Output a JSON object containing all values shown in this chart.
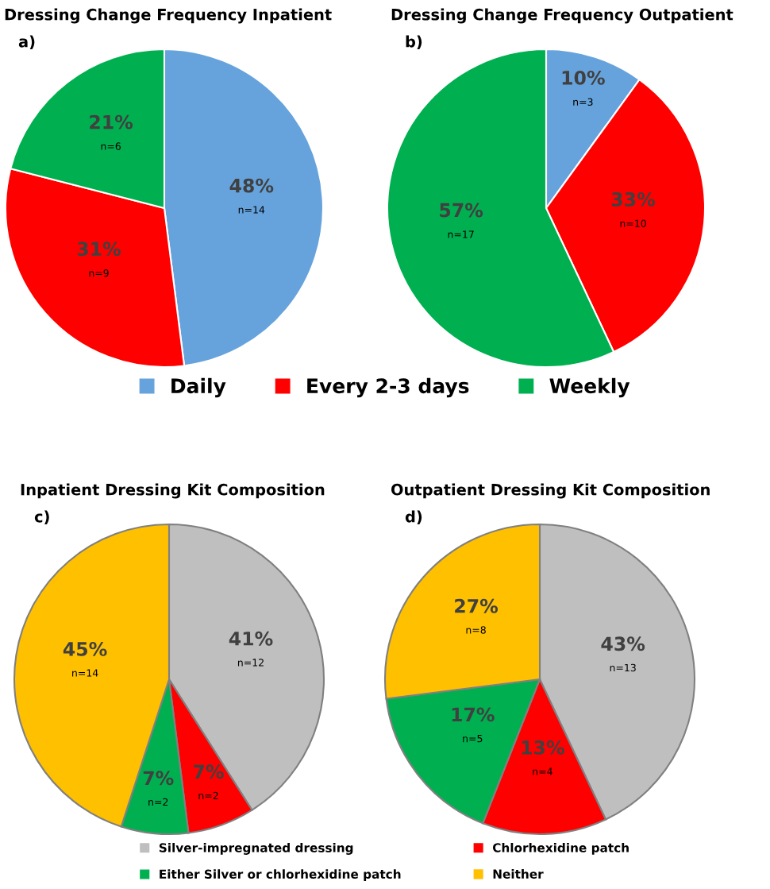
{
  "chart_data": [
    {
      "type": "pie",
      "title": "Dressing Change Frequency Inpatient",
      "subtitle": "a)",
      "categories": [
        "Daily",
        "Every 2-3 days",
        "Weekly"
      ],
      "values": [
        48,
        31,
        21
      ],
      "colors": [
        "#66a3dc",
        "#ff0000",
        "#00b050"
      ],
      "value_labels": [
        "48%\nn=14",
        "31%\nn=9",
        "21%\nn=6"
      ],
      "legend": "bottom"
    },
    {
      "type": "pie",
      "title": "Dressing Change Frequency Outpatient",
      "subtitle": "b)",
      "categories": [
        null,
        null,
        null
      ],
      "values": [
        10,
        33,
        57
      ],
      "colors": [
        "#66a3dc",
        "#ff0000",
        "#00b050"
      ],
      "value_labels": [
        "10%\nn=3",
        "33%\nn=10",
        "57%\nn=17"
      ]
    },
    {
      "type": "pie",
      "title": "Inpatient Dressing Kit Composition",
      "subtitle": "c)",
      "categories": [
        "Silver-impregnated dressing",
        "Chlorhexidine patch",
        "Either Silver or chlorhexidine patch",
        "Neither"
      ],
      "values": [
        41,
        7,
        7,
        45
      ],
      "colors": [
        "#bfbfbf",
        "#ff0000",
        "#00b050",
        "#ffc000"
      ],
      "value_labels": [
        "41%\nn=12",
        "7%\nn=2",
        "7%\nn=2",
        "45%\nn=14"
      ],
      "legend": "bottom"
    },
    {
      "type": "pie",
      "title": "Outpatient Dressing Kit Composition",
      "subtitle": "d)",
      "categories": [
        null,
        null,
        null,
        null
      ],
      "values": [
        43,
        13,
        17,
        27
      ],
      "colors": [
        "#bfbfbf",
        "#ff0000",
        "#00b050",
        "#ffc000"
      ],
      "value_labels": [
        "43%\nn=13",
        "13%\nn=4",
        "17%\nn=5",
        "27%\nn=8"
      ]
    }
  ]
}
